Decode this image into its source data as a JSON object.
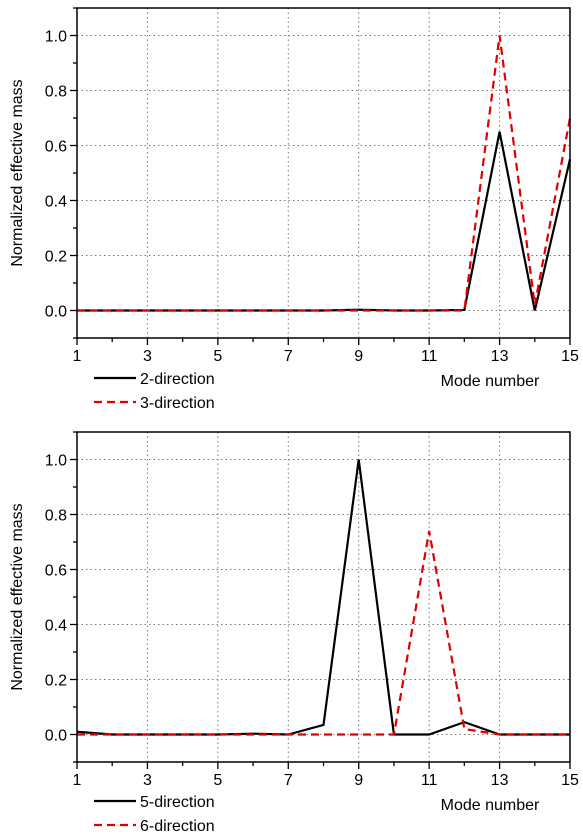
{
  "chart_data": [
    {
      "type": "line",
      "title": "",
      "xlabel": "Mode number",
      "ylabel": "Normalized effective mass",
      "xlim": [
        1,
        15
      ],
      "ylim": [
        -0.1,
        1.1
      ],
      "x_ticks": [
        "1",
        "3",
        "5",
        "7",
        "9",
        "11",
        "13",
        "15"
      ],
      "y_ticks": [
        "0.0",
        "0.2",
        "0.4",
        "0.6",
        "0.8",
        "1.0"
      ],
      "grid": true,
      "legend_position": "bottom-left",
      "x": [
        1,
        2,
        3,
        4,
        5,
        6,
        7,
        8,
        9,
        10,
        11,
        12,
        13,
        14,
        15
      ],
      "series": [
        {
          "name": "2-direction",
          "color": "#000000",
          "style": "solid",
          "values": [
            0,
            0,
            0,
            0,
            0,
            0,
            0,
            0,
            0.003,
            0,
            0,
            0.002,
            0.65,
            0,
            0.55
          ]
        },
        {
          "name": "3-direction",
          "color": "#e00000",
          "style": "dashed",
          "values": [
            0,
            0,
            0,
            0,
            0,
            0,
            0,
            0,
            0,
            0,
            0,
            0,
            1.0,
            0.02,
            0.7
          ]
        }
      ]
    },
    {
      "type": "line",
      "title": "",
      "xlabel": "Mode number",
      "ylabel": "Normalized effective mass",
      "xlim": [
        1,
        15
      ],
      "ylim": [
        -0.1,
        1.1
      ],
      "x_ticks": [
        "1",
        "3",
        "5",
        "7",
        "9",
        "11",
        "13",
        "15"
      ],
      "y_ticks": [
        "0.0",
        "0.2",
        "0.4",
        "0.6",
        "0.8",
        "1.0"
      ],
      "grid": true,
      "legend_position": "bottom-left",
      "x": [
        1,
        2,
        3,
        4,
        5,
        6,
        7,
        8,
        9,
        10,
        11,
        12,
        13,
        14,
        15
      ],
      "series": [
        {
          "name": "5-direction",
          "color": "#000000",
          "style": "solid",
          "values": [
            0.01,
            0,
            0,
            0,
            0,
            0.003,
            0,
            0.035,
            1.0,
            0,
            0,
            0.045,
            0,
            0,
            0
          ]
        },
        {
          "name": "6-direction",
          "color": "#e00000",
          "style": "dashed",
          "values": [
            0,
            0,
            0,
            0,
            0,
            0,
            0,
            0,
            0,
            0,
            0.74,
            0.02,
            0,
            0,
            0
          ]
        }
      ]
    }
  ]
}
